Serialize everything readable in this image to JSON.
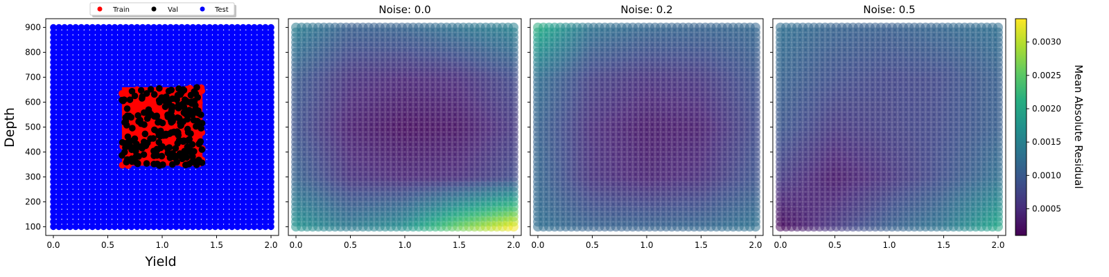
{
  "chart_data": [
    {
      "type": "scatter",
      "title": "",
      "xlabel": "Yield",
      "ylabel": "Depth",
      "xlim": [
        -0.07,
        2.07
      ],
      "ylim": [
        65,
        935
      ],
      "xticks": [
        "0.0",
        "0.5",
        "1.0",
        "1.5",
        "2.0"
      ],
      "yticks": [
        "100",
        "200",
        "300",
        "400",
        "500",
        "600",
        "700",
        "800",
        "900"
      ],
      "legend": {
        "placement": "top-center",
        "entries": [
          {
            "name": "Train",
            "color": "#ff0000"
          },
          {
            "name": "Val",
            "color": "#000000"
          },
          {
            "name": "Test",
            "color": "#0000ff"
          }
        ]
      },
      "series": [
        {
          "name": "Test",
          "color": "#0000ff",
          "x_range": [
            0.0,
            2.0
          ],
          "y_range": [
            100,
            900
          ]
        },
        {
          "name": "Train",
          "color": "#ff0000",
          "x_range": [
            0.63,
            1.37
          ],
          "y_range": [
            345,
            660
          ]
        },
        {
          "name": "Val",
          "color": "#000000",
          "x_range": [
            0.63,
            1.37
          ],
          "y_range": [
            345,
            660
          ]
        }
      ]
    },
    {
      "type": "heatmap",
      "title": "Noise: 0.0",
      "xticks": [
        "0.0",
        "0.5",
        "1.0",
        "1.5",
        "2.0"
      ],
      "xlim": [
        -0.07,
        2.07
      ],
      "ylim": [
        65,
        935
      ],
      "grid_x": [
        0.0,
        0.5,
        1.0,
        1.5,
        2.0
      ],
      "grid_y": [
        100,
        300,
        500,
        700,
        900
      ],
      "values": [
        [
          0.00145,
          0.00105,
          0.0011,
          0.0013,
          0.0015
        ],
        [
          0.001,
          0.00055,
          0.00045,
          0.0005,
          0.0008
        ],
        [
          0.0009,
          0.00035,
          0.0002,
          0.00025,
          0.0006
        ],
        [
          0.0011,
          0.00055,
          0.00045,
          0.0005,
          0.0008
        ],
        [
          0.00175,
          0.0014,
          0.0017,
          0.0026,
          0.0033
        ]
      ]
    },
    {
      "type": "heatmap",
      "title": "Noise: 0.2",
      "xticks": [
        "0.0",
        "0.5",
        "1.0",
        "1.5",
        "2.0"
      ],
      "xlim": [
        -0.07,
        2.07
      ],
      "ylim": [
        65,
        935
      ],
      "grid_x": [
        0.0,
        0.5,
        1.0,
        1.5,
        2.0
      ],
      "grid_y": [
        100,
        300,
        500,
        700,
        900
      ],
      "values": [
        [
          0.0021,
          0.0013,
          0.00115,
          0.0011,
          0.00115
        ],
        [
          0.00125,
          0.0007,
          0.00055,
          0.0006,
          0.0009
        ],
        [
          0.0011,
          0.0005,
          0.0003,
          0.00035,
          0.0008
        ],
        [
          0.00115,
          0.00055,
          0.0004,
          0.0005,
          0.0009
        ],
        [
          0.00125,
          0.0011,
          0.0011,
          0.00115,
          0.0013
        ]
      ]
    },
    {
      "type": "heatmap",
      "title": "Noise: 0.5",
      "xticks": [
        "0.0",
        "0.5",
        "1.0",
        "1.5",
        "2.0"
      ],
      "xlim": [
        -0.07,
        2.07
      ],
      "ylim": [
        65,
        935
      ],
      "grid_x": [
        0.0,
        0.5,
        1.0,
        1.5,
        2.0
      ],
      "grid_y": [
        100,
        300,
        500,
        700,
        900
      ],
      "values": [
        [
          0.00125,
          0.0011,
          0.00105,
          0.00115,
          0.00125
        ],
        [
          0.0011,
          0.00085,
          0.00075,
          0.0008,
          0.00105
        ],
        [
          0.00095,
          0.0006,
          0.0007,
          0.0008,
          0.00105
        ],
        [
          0.00065,
          0.0003,
          0.00055,
          0.00085,
          0.00125
        ],
        [
          0.00015,
          0.0006,
          0.00105,
          0.00135,
          0.002
        ]
      ]
    }
  ],
  "colorbar": {
    "label": "Mean Absolute Residual",
    "min": 0.0001,
    "max": 0.00335,
    "ticks": [
      "0.0005",
      "0.0010",
      "0.0015",
      "0.0020",
      "0.0025",
      "0.0030"
    ],
    "tick_values": [
      0.0005,
      0.001,
      0.0015,
      0.002,
      0.0025,
      0.003
    ],
    "colormap": "viridis"
  }
}
